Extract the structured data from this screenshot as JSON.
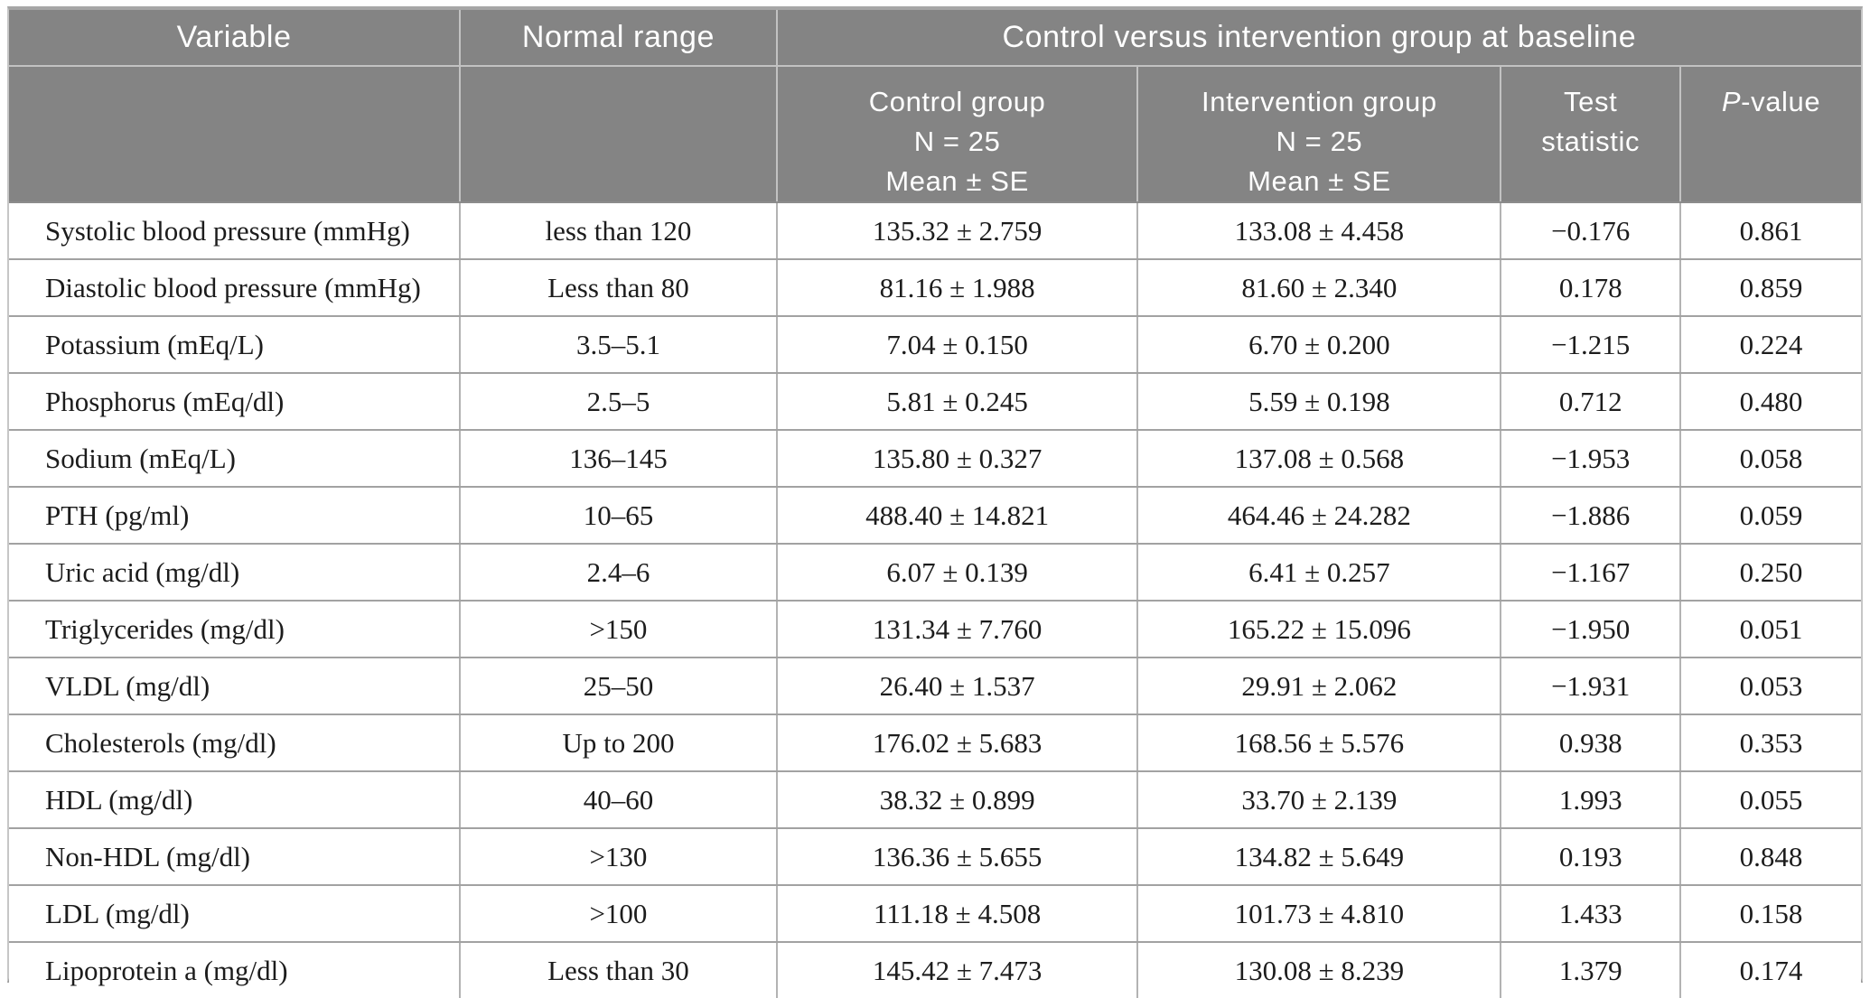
{
  "colors": {
    "header_bg": "#848484",
    "header_text": "#ffffff",
    "body_text": "#1c1c1c"
  },
  "header": {
    "variable": "Variable",
    "normal_range": "Normal range",
    "group_title": "Control versus intervention group at baseline",
    "control_group": "Control group\nN = 25\nMean ± SE",
    "intervention_group": "Intervention group\nN = 25\nMean ± SE",
    "test_statistic": "Test\nstatistic",
    "p_value_italic": "P",
    "p_value_rest": "-value"
  },
  "table": {
    "row_keys": [
      "variable",
      "normal_range",
      "control",
      "intervention",
      "test_statistic",
      "p_value"
    ],
    "rows": [
      {
        "variable": "Systolic blood pressure (mmHg)",
        "normal_range": "less than 120",
        "control": "135.32 ± 2.759",
        "intervention": "133.08 ± 4.458",
        "test_statistic": "−0.176",
        "p_value": "0.861"
      },
      {
        "variable": "Diastolic blood pressure (mmHg)",
        "normal_range": "Less than 80",
        "control": "81.16 ± 1.988",
        "intervention": "81.60 ± 2.340",
        "test_statistic": "0.178",
        "p_value": "0.859"
      },
      {
        "variable": "Potassium (mEq/L)",
        "normal_range": "3.5–5.1",
        "control": "7.04 ± 0.150",
        "intervention": "6.70 ± 0.200",
        "test_statistic": "−1.215",
        "p_value": "0.224"
      },
      {
        "variable": "Phosphorus (mEq/dl)",
        "normal_range": "2.5–5",
        "control": "5.81 ± 0.245",
        "intervention": "5.59 ± 0.198",
        "test_statistic": "0.712",
        "p_value": "0.480"
      },
      {
        "variable": "Sodium (mEq/L)",
        "normal_range": "136–145",
        "control": "135.80 ± 0.327",
        "intervention": "137.08 ± 0.568",
        "test_statistic": "−1.953",
        "p_value": "0.058"
      },
      {
        "variable": "PTH (pg/ml)",
        "normal_range": "10–65",
        "control": "488.40 ± 14.821",
        "intervention": "464.46 ± 24.282",
        "test_statistic": "−1.886",
        "p_value": "0.059"
      },
      {
        "variable": "Uric acid (mg/dl)",
        "normal_range": "2.4–6",
        "control": "6.07 ± 0.139",
        "intervention": "6.41 ± 0.257",
        "test_statistic": "−1.167",
        "p_value": "0.250"
      },
      {
        "variable": "Triglycerides (mg/dl)",
        "normal_range": ">150",
        "control": "131.34 ± 7.760",
        "intervention": "165.22 ± 15.096",
        "test_statistic": "−1.950",
        "p_value": "0.051"
      },
      {
        "variable": "VLDL (mg/dl)",
        "normal_range": "25–50",
        "control": "26.40 ± 1.537",
        "intervention": "29.91 ± 2.062",
        "test_statistic": "−1.931",
        "p_value": "0.053"
      },
      {
        "variable": "Cholesterols (mg/dl)",
        "normal_range": "Up to 200",
        "control": "176.02 ± 5.683",
        "intervention": "168.56 ± 5.576",
        "test_statistic": "0.938",
        "p_value": "0.353"
      },
      {
        "variable": "HDL (mg/dl)",
        "normal_range": "40–60",
        "control": "38.32 ± 0.899",
        "intervention": "33.70 ± 2.139",
        "test_statistic": "1.993",
        "p_value": "0.055"
      },
      {
        "variable": "Non-HDL (mg/dl)",
        "normal_range": ">130",
        "control": "136.36 ± 5.655",
        "intervention": "134.82 ± 5.649",
        "test_statistic": "0.193",
        "p_value": "0.848"
      },
      {
        "variable": "LDL (mg/dl)",
        "normal_range": ">100",
        "control": "111.18 ± 4.508",
        "intervention": "101.73 ± 4.810",
        "test_statistic": "1.433",
        "p_value": "0.158"
      },
      {
        "variable": "Lipoprotein a (mg/dl)",
        "normal_range": "Less than 30",
        "control": "145.42 ± 7.473",
        "intervention": "130.08 ± 8.239",
        "test_statistic": "1.379",
        "p_value": "0.174"
      }
    ]
  }
}
